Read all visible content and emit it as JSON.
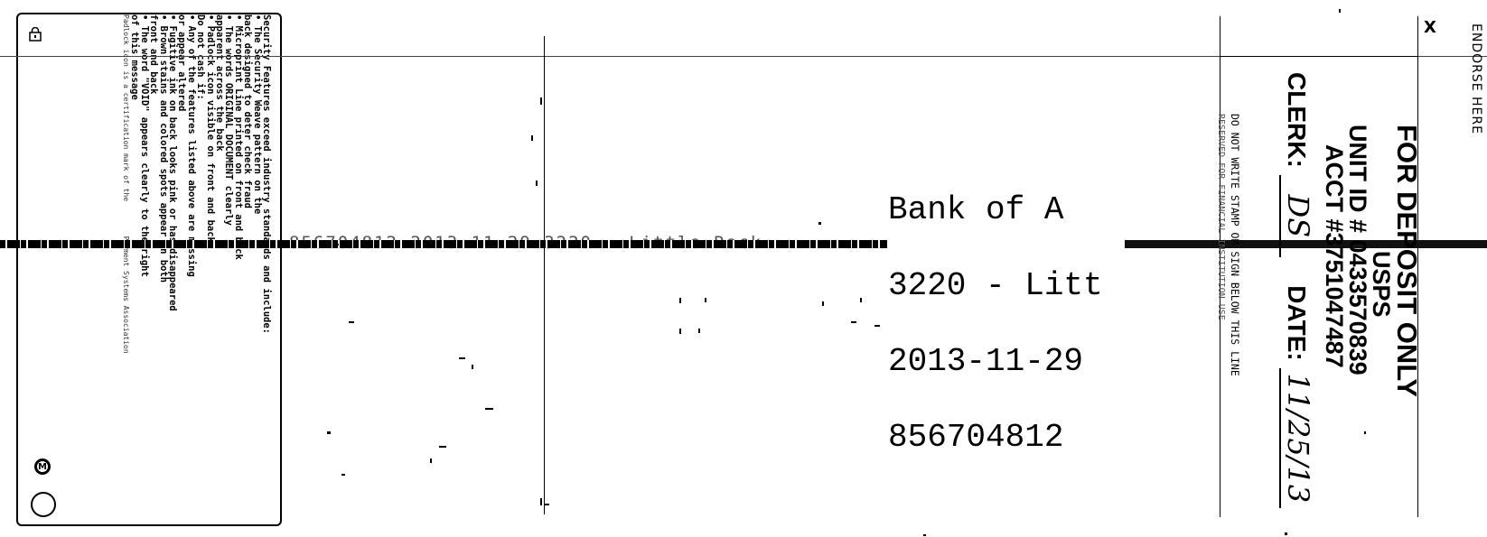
{
  "security_panel": {
    "lines": [
      "Security Features exceed industry standards and include:",
      "• The Security Weave pattern on the",
      "  back designed to deter check fraud",
      "• Microprint Line printed on front and back",
      "• The words ORIGINAL DOCUMENT clearly",
      "  apparent across the back",
      "• Padlock icon visible on front and back",
      "Do not cash if:",
      "• Any of the features listed above are missing",
      "  or appear altered",
      "• Fugitive ink on back looks pink or has disappeared",
      "• Brown stains and colored spots appear on both",
      "  front and back",
      "• The word \"VOID\" appears clearly to the right",
      "  of this message"
    ],
    "footer_left": "Padlock icon is a certification mark of the",
    "footer_right": "Payment Systems Association",
    "badge_letter": "M",
    "icons": [
      "padlock-icon",
      "circle-m-icon",
      "circle-icon"
    ]
  },
  "micr_faint": "856704812  2013-11-29  3220 - Little Rock",
  "bank_stamp": {
    "line1": "Bank of A",
    "line2": "3220 - Litt",
    "line3": "2013-11-29",
    "line4": "856704812"
  },
  "endorsement": {
    "endorse_here": "ENDORSE HERE",
    "x_mark": "X",
    "title": "FOR DEPOSIT ONLY",
    "org": "USPS",
    "unit_id": "UNIT ID # 0433570839",
    "acct": "ACCT #3751047487",
    "clerk_label": "CLERK:",
    "clerk_initials": "DS",
    "date_label": "DATE:",
    "date_value": "11/25/13",
    "do_not_write": "DO NOT WRITE STAMP OR SIGN BELOW THIS LINE",
    "reserved": "RESERVED FOR FINANCIAL INSTITUTION USE"
  }
}
